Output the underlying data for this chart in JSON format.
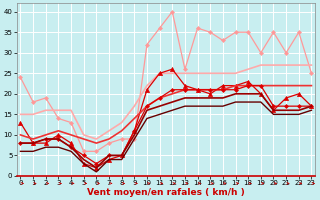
{
  "bg_color": "#c8eef0",
  "grid_color": "#ffffff",
  "xlabel": "Vent moyen/en rafales ( km/h )",
  "x": [
    0,
    1,
    2,
    3,
    4,
    5,
    6,
    7,
    8,
    9,
    10,
    11,
    12,
    13,
    14,
    15,
    16,
    17,
    18,
    19,
    20,
    21,
    22,
    23
  ],
  "series": [
    {
      "y": [
        24,
        18,
        19,
        14,
        13,
        6,
        6,
        8,
        9,
        9,
        32,
        36,
        40,
        26,
        36,
        35,
        33,
        35,
        35,
        30,
        35,
        30,
        35,
        25
      ],
      "color": "#ff9999",
      "lw": 0.9,
      "marker": "D",
      "ms": 2.0
    },
    {
      "y": [
        15,
        15,
        16,
        16,
        16,
        10,
        9,
        11,
        13,
        17,
        22,
        25,
        25,
        25,
        25,
        25,
        25,
        25,
        26,
        27,
        27,
        27,
        27,
        27
      ],
      "color": "#ffaaaa",
      "lw": 1.2,
      "marker": null,
      "ms": 0
    },
    {
      "y": [
        13,
        8,
        8,
        10,
        8,
        3,
        2,
        4,
        5,
        11,
        21,
        25,
        26,
        22,
        21,
        20,
        22,
        22,
        23,
        20,
        16,
        19,
        20,
        17
      ],
      "color": "#dd0000",
      "lw": 0.9,
      "marker": "^",
      "ms": 3.0
    },
    {
      "y": [
        10,
        9,
        10,
        11,
        10,
        9,
        8,
        9,
        11,
        14,
        17,
        19,
        20,
        21,
        21,
        21,
        21,
        22,
        22,
        22,
        22,
        22,
        22,
        22
      ],
      "color": "#ee3333",
      "lw": 1.2,
      "marker": null,
      "ms": 0
    },
    {
      "y": [
        8,
        8,
        9,
        9,
        7,
        5,
        3,
        5,
        5,
        11,
        17,
        19,
        21,
        21,
        21,
        21,
        21,
        21,
        22,
        22,
        17,
        17,
        17,
        17
      ],
      "color": "#dd0000",
      "lw": 0.9,
      "marker": "D",
      "ms": 2.0
    },
    {
      "y": [
        8,
        8,
        9,
        9,
        7,
        4,
        2,
        5,
        5,
        10,
        16,
        17,
        18,
        19,
        19,
        19,
        19,
        20,
        20,
        20,
        16,
        16,
        16,
        17
      ],
      "color": "#990000",
      "lw": 1.2,
      "marker": null,
      "ms": 0
    },
    {
      "y": [
        6,
        6,
        7,
        7,
        6,
        3,
        1,
        4,
        4,
        9,
        14,
        15,
        16,
        17,
        17,
        17,
        17,
        18,
        18,
        18,
        15,
        15,
        15,
        16
      ],
      "color": "#660000",
      "lw": 1.0,
      "marker": null,
      "ms": 0
    }
  ],
  "xlim": [
    -0.3,
    23.3
  ],
  "ylim": [
    0,
    42
  ],
  "yticks": [
    0,
    5,
    10,
    15,
    20,
    25,
    30,
    35,
    40
  ],
  "xticks": [
    0,
    1,
    2,
    3,
    4,
    5,
    6,
    7,
    8,
    9,
    10,
    11,
    12,
    13,
    14,
    15,
    16,
    17,
    18,
    19,
    20,
    21,
    22,
    23
  ],
  "tick_fontsize": 5.0,
  "xlabel_fontsize": 6.5,
  "arrow_color": "#cc0000"
}
